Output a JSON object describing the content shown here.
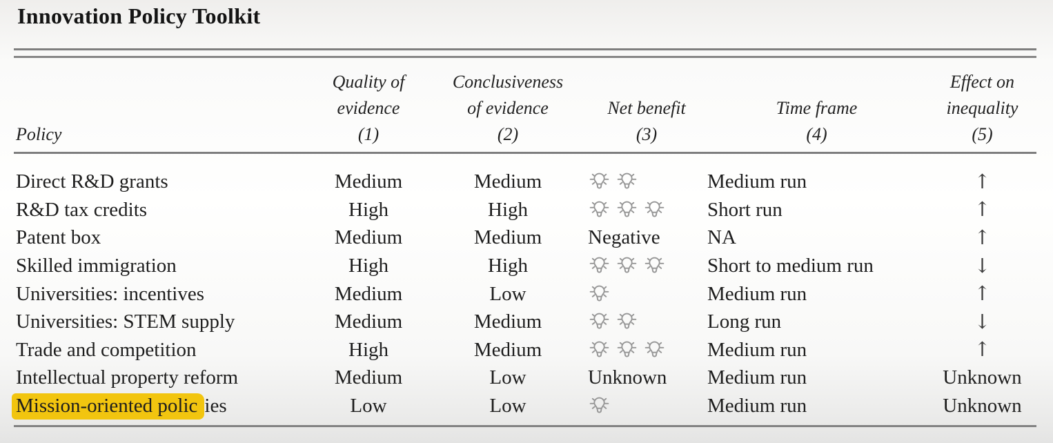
{
  "title": "Innovation Policy Toolkit",
  "colors": {
    "highlight": "#F2C50F",
    "rule": "#7E7E7E",
    "text": "#1D1D1D",
    "bulb_icon": "#969696",
    "arrow": "#3E3E3E"
  },
  "icons": {
    "net_benefit_rating": "lightbulb-icon",
    "inequality_up": "arrow-up-icon",
    "inequality_down": "arrow-down-icon"
  },
  "table": {
    "columns": [
      {
        "id": "policy",
        "label_lines": [
          "Policy"
        ],
        "number": "",
        "align": "left"
      },
      {
        "id": "quality",
        "label_lines": [
          "Quality of",
          "evidence"
        ],
        "number": "(1)",
        "align": "center"
      },
      {
        "id": "conclusiveness",
        "label_lines": [
          "Conclusiveness",
          "of evidence"
        ],
        "number": "(2)",
        "align": "center"
      },
      {
        "id": "net-benefit",
        "label_lines": [
          "Net benefit"
        ],
        "number": "(3)",
        "align": "center"
      },
      {
        "id": "time-frame",
        "label_lines": [
          "Time frame"
        ],
        "number": "(4)",
        "align": "center"
      },
      {
        "id": "inequality",
        "label_lines": [
          "Effect on",
          "inequality"
        ],
        "number": "(5)",
        "align": "center"
      }
    ],
    "rows": [
      {
        "policy": "Direct R&D grants",
        "quality": "Medium",
        "conclusiveness": "Medium",
        "net_benefit": {
          "kind": "bulbs",
          "count": 2
        },
        "time_frame": "Medium run",
        "inequality": {
          "kind": "up",
          "glyph": "↑"
        }
      },
      {
        "policy": "R&D tax credits",
        "quality": "High",
        "conclusiveness": "High",
        "net_benefit": {
          "kind": "bulbs",
          "count": 3
        },
        "time_frame": "Short run",
        "inequality": {
          "kind": "up",
          "glyph": "↑"
        }
      },
      {
        "policy": "Patent box",
        "quality": "Medium",
        "conclusiveness": "Medium",
        "net_benefit": {
          "kind": "text",
          "value": "Negative"
        },
        "time_frame": "NA",
        "inequality": {
          "kind": "up",
          "glyph": "↑"
        }
      },
      {
        "policy": "Skilled immigration",
        "quality": "High",
        "conclusiveness": "High",
        "net_benefit": {
          "kind": "bulbs",
          "count": 3
        },
        "time_frame": "Short to medium run",
        "inequality": {
          "kind": "down",
          "glyph": "↓"
        }
      },
      {
        "policy": "Universities: incentives",
        "quality": "Medium",
        "conclusiveness": "Low",
        "net_benefit": {
          "kind": "bulbs",
          "count": 1
        },
        "time_frame": "Medium run",
        "inequality": {
          "kind": "up",
          "glyph": "↑"
        }
      },
      {
        "policy": "Universities: STEM supply",
        "quality": "Medium",
        "conclusiveness": "Medium",
        "net_benefit": {
          "kind": "bulbs",
          "count": 2
        },
        "time_frame": "Long run",
        "inequality": {
          "kind": "down",
          "glyph": "↓"
        }
      },
      {
        "policy": "Trade and competition",
        "quality": "High",
        "conclusiveness": "Medium",
        "net_benefit": {
          "kind": "bulbs",
          "count": 3
        },
        "time_frame": "Medium run",
        "inequality": {
          "kind": "up",
          "glyph": "↑"
        }
      },
      {
        "policy": "Intellectual property reform",
        "quality": "Medium",
        "conclusiveness": "Low",
        "net_benefit": {
          "kind": "text",
          "value": "Unknown"
        },
        "time_frame": "Medium run",
        "inequality": {
          "kind": "text",
          "glyph": "Unknown"
        }
      },
      {
        "policy": "Mission-oriented policies",
        "policy_highlight": "Mission-oriented polic",
        "quality": "Low",
        "conclusiveness": "Low",
        "net_benefit": {
          "kind": "bulbs",
          "count": 1
        },
        "time_frame": "Medium run",
        "inequality": {
          "kind": "text",
          "glyph": "Unknown"
        }
      }
    ]
  }
}
